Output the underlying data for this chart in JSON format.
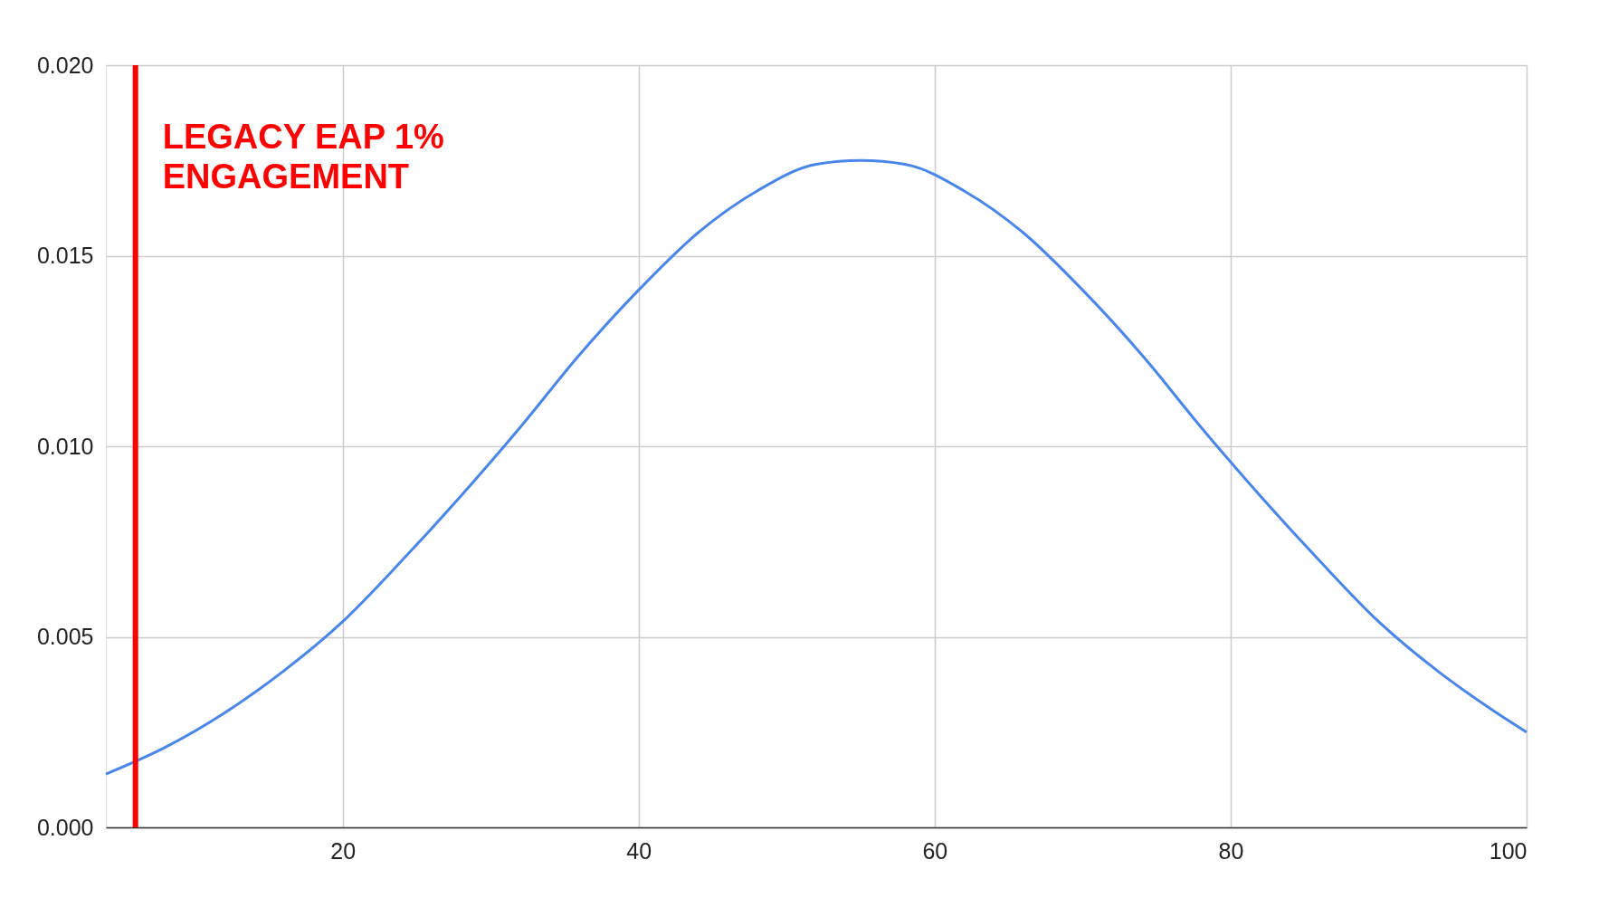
{
  "chart_data": {
    "type": "line",
    "x": [
      4,
      8,
      12,
      16,
      20,
      24,
      28,
      32,
      36,
      40,
      44,
      48,
      52,
      55,
      58,
      62,
      66,
      70,
      74,
      78,
      82,
      86,
      90,
      94,
      98,
      100
    ],
    "series": [
      {
        "color": "#4a86e8",
        "values": [
          0.0014,
          0.0021,
          0.003,
          0.0041,
          0.0054,
          0.007,
          0.0087,
          0.0105,
          0.0124,
          0.0141,
          0.0156,
          0.0167,
          0.0174,
          0.0175,
          0.0174,
          0.0167,
          0.0156,
          0.0141,
          0.0124,
          0.0105,
          0.0087,
          0.007,
          0.0054,
          0.0041,
          0.003,
          0.0025
        ]
      }
    ],
    "xlim": [
      4,
      100
    ],
    "xticks": [
      20,
      40,
      60,
      80,
      100
    ],
    "ylim": [
      0,
      0.02
    ],
    "yticks": [
      {
        "value": 0,
        "label": "0.000"
      },
      {
        "value": 0.005,
        "label": "0.005"
      },
      {
        "value": 0.01,
        "label": "0.010"
      },
      {
        "value": 0.015,
        "label": "0.015"
      },
      {
        "value": 0.02,
        "label": "0.020"
      }
    ],
    "ref_lines": [
      {
        "axis": "x",
        "value": 6,
        "label": "LEGACY EAP 1%\nENGAGEMENT",
        "color": "#ff0000"
      }
    ],
    "grid": true,
    "marker": "none",
    "line_style": "solid"
  }
}
